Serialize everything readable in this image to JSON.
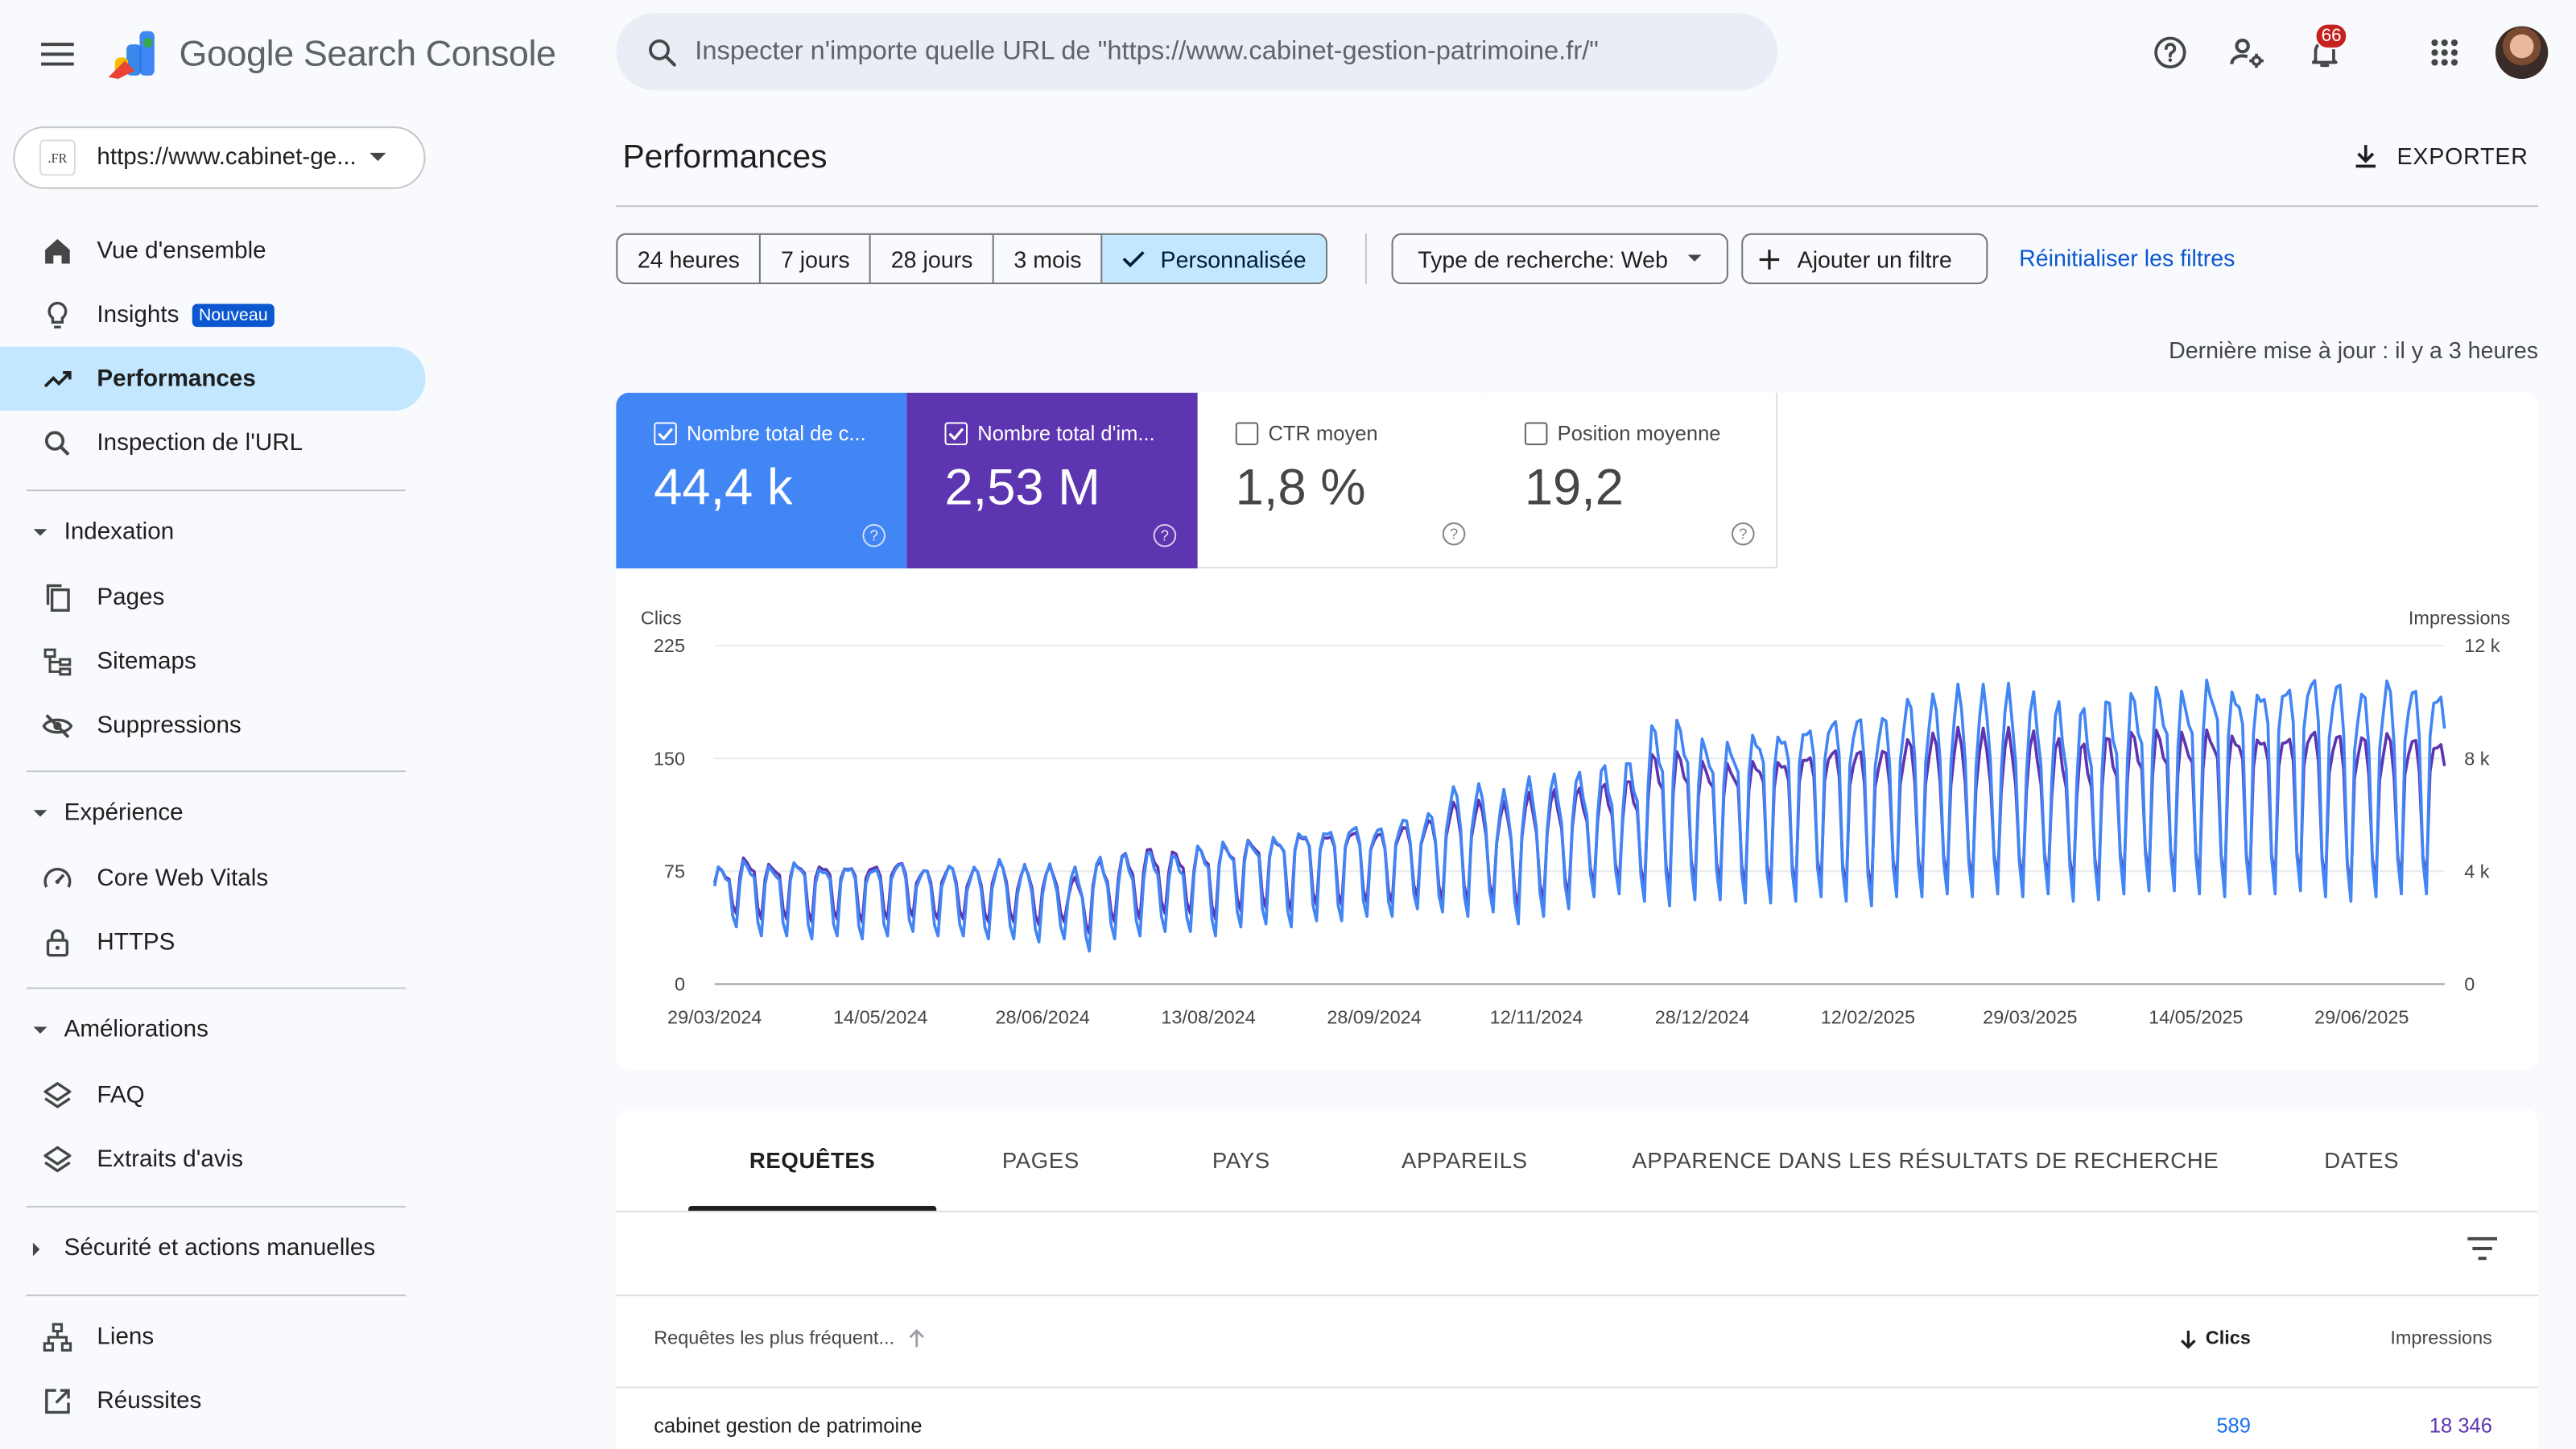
{
  "header": {
    "app_name": "Google Search Console",
    "search_placeholder": "Inspecter n'importe quelle URL de \"https://www.cabinet-gestion-patrimoine.fr/\"",
    "notification_count": "66"
  },
  "property": {
    "favicon_text": ".FR",
    "url": "https://www.cabinet-ge..."
  },
  "sidebar": {
    "overview": "Vue d'ensemble",
    "insights": "Insights",
    "insights_badge": "Nouveau",
    "performance": "Performances",
    "url_inspection": "Inspection de l'URL",
    "indexing": "Indexation",
    "pages": "Pages",
    "sitemaps": "Sitemaps",
    "removals": "Suppressions",
    "experience": "Expérience",
    "cwv": "Core Web Vitals",
    "https": "HTTPS",
    "enhancements": "Améliorations",
    "faq": "FAQ",
    "review_snippets": "Extraits d'avis",
    "security": "Sécurité et actions manuelles",
    "links": "Liens",
    "achievements": "Réussites"
  },
  "main": {
    "title": "Performances",
    "export_label": "EXPORTER",
    "date_ranges": [
      "24 heures",
      "7 jours",
      "28 jours",
      "3 mois",
      "Personnalisée"
    ],
    "selected_range": "Personnalisée",
    "search_type": "Type de recherche: Web",
    "add_filter": "Ajouter un filtre",
    "reset_filters": "Réinitialiser les filtres",
    "last_update": "Dernière mise à jour : il y a 3 heures"
  },
  "metrics": [
    {
      "label": "Nombre total de c...",
      "value": "44,4 k",
      "checked": true,
      "color": "#4285f4"
    },
    {
      "label": "Nombre total d'im...",
      "value": "2,53 M",
      "checked": true,
      "color": "#5e35b1"
    },
    {
      "label": "CTR moyen",
      "value": "1,8 %",
      "checked": false
    },
    {
      "label": "Position moyenne",
      "value": "19,2",
      "checked": false
    }
  ],
  "chart_data": {
    "type": "line",
    "ylabel_left": "Clics",
    "ylabel_right": "Impressions",
    "y_ticks_left": [
      "0",
      "75",
      "150",
      "225"
    ],
    "y_ticks_right": [
      "0",
      "4 k",
      "8 k",
      "12 k"
    ],
    "ylim_left": [
      0,
      225
    ],
    "ylim_right": [
      0,
      12000
    ],
    "x_labels": [
      "29/03/2024",
      "14/05/2024",
      "28/06/2024",
      "13/08/2024",
      "28/09/2024",
      "12/11/2024",
      "28/12/2024",
      "12/02/2025",
      "29/03/2025",
      "14/05/2025",
      "29/06/2025"
    ],
    "x_start": "2024-03-29",
    "x_end": "2025-07-22",
    "series": [
      {
        "name": "Clics",
        "axis": "left",
        "color": "#4285f4",
        "weekly_high": [
          80,
          85,
          82,
          86,
          82,
          84,
          82,
          85,
          80,
          82,
          80,
          84,
          80,
          80,
          78,
          85,
          88,
          90,
          88,
          95,
          98,
          100,
          104,
          108,
          110,
          112,
          110,
          115,
          118,
          135,
          135,
          130,
          138,
          140,
          142,
          148,
          152,
          178,
          182,
          170,
          170,
          178,
          180,
          185,
          190,
          190,
          188,
          198,
          198,
          202,
          200,
          200,
          195,
          190,
          188,
          195,
          200,
          205,
          204,
          215,
          210,
          212,
          215,
          220,
          215,
          205,
          210
        ],
        "weekly_low": [
          38,
          32,
          32,
          30,
          32,
          30,
          32,
          35,
          32,
          32,
          30,
          30,
          28,
          30,
          22,
          30,
          32,
          35,
          35,
          32,
          38,
          40,
          38,
          42,
          42,
          45,
          45,
          50,
          48,
          45,
          48,
          40,
          45,
          50,
          58,
          60,
          55,
          52,
          56,
          56,
          54,
          54,
          55,
          58,
          55,
          52,
          58,
          58,
          60,
          58,
          60,
          58,
          60,
          55,
          56,
          60,
          62,
          62,
          60,
          58,
          60,
          60,
          62,
          58,
          55,
          58,
          60
        ]
      },
      {
        "name": "Impressions",
        "axis": "right",
        "color": "#5e35b1",
        "weekly_high": [
          4200,
          4600,
          4400,
          4500,
          4400,
          4400,
          4400,
          4500,
          4200,
          4300,
          4200,
          4400,
          4200,
          4200,
          3800,
          4400,
          4700,
          4900,
          4800,
          5000,
          5100,
          5300,
          5400,
          5600,
          5600,
          5700,
          5600,
          5800,
          6000,
          6600,
          6600,
          6500,
          6800,
          6900,
          7000,
          7200,
          7400,
          8400,
          8500,
          8200,
          8200,
          8400,
          8500,
          8700,
          8900,
          8800,
          8700,
          9000,
          9100,
          9200,
          9100,
          9100,
          9000,
          8800,
          8700,
          9000,
          9200,
          9300,
          9300,
          9500,
          9400,
          9400,
          9400,
          9600,
          9400,
          9200,
          9200
        ],
        "weekly_low": [
          2500,
          2300,
          2300,
          2200,
          2300,
          2200,
          2300,
          2400,
          2300,
          2300,
          2200,
          2200,
          2100,
          2200,
          1800,
          2200,
          2300,
          2500,
          2500,
          2300,
          2600,
          2700,
          2600,
          2800,
          2800,
          2900,
          2900,
          3100,
          3000,
          2900,
          3000,
          2700,
          2900,
          3100,
          3500,
          3600,
          3400,
          3300,
          3500,
          3500,
          3400,
          3400,
          3400,
          3600,
          3400,
          3300,
          3600,
          3600,
          3700,
          3600,
          3700,
          3600,
          3700,
          3500,
          3500,
          3700,
          3800,
          3800,
          3700,
          3600,
          3700,
          3700,
          3800,
          3600,
          3400,
          3600,
          3700
        ]
      }
    ]
  },
  "tabs": [
    "REQUÊTES",
    "PAGES",
    "PAYS",
    "APPAREILS",
    "APPARENCE DANS LES RÉSULTATS DE RECHERCHE",
    "DATES"
  ],
  "table": {
    "col_query": "Requêtes les plus fréquent...",
    "col_clicks": "Clics",
    "col_impressions": "Impressions",
    "rows": [
      {
        "query": "cabinet gestion de patrimoine",
        "clicks": "589",
        "impressions": "18 346"
      }
    ]
  }
}
